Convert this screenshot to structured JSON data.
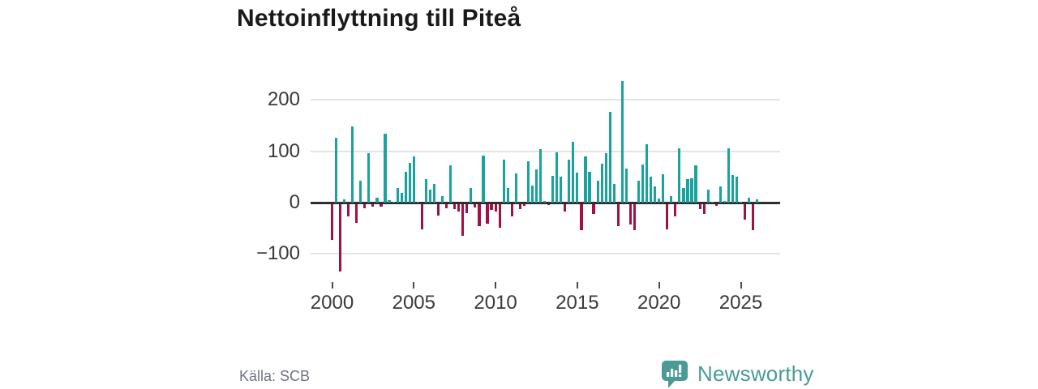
{
  "title": "Nettoinflyttning till Piteå",
  "source": "Källa: SCB",
  "branding": {
    "logo_text": "Newsworthy",
    "logo_color": "#4a9b95"
  },
  "chart_data": {
    "type": "bar",
    "title": "Nettoinflyttning till Piteå",
    "x_unit": "quarter",
    "x_start": "2000 Q1",
    "x_end": "2026 Q1",
    "x_tick_years": [
      2000,
      2005,
      2010,
      2015,
      2020,
      2025
    ],
    "y_ticks": [
      200,
      100,
      0,
      -100
    ],
    "y_tick_labels": [
      "200",
      "100",
      "0",
      "−100"
    ],
    "ylim": [
      -140,
      245
    ],
    "grid": true,
    "legend": "none",
    "positive_color": "#1aa29e",
    "negative_color": "#a41046",
    "series": [
      {
        "name": "Nettoinflyttning",
        "values": [
          -70,
          126,
          -132,
          7,
          -24,
          148,
          -37,
          43,
          -9,
          96,
          -5,
          9,
          -6,
          134,
          5,
          2,
          29,
          19,
          60,
          77,
          90,
          2,
          -50,
          45,
          25,
          37,
          -23,
          13,
          -8,
          73,
          -10,
          -15,
          -63,
          -18,
          28,
          -7,
          -44,
          91,
          -39,
          -12,
          -15,
          -47,
          84,
          29,
          -24,
          57,
          -10,
          -4,
          81,
          33,
          65,
          104,
          3,
          -3,
          52,
          98,
          51,
          -15,
          83,
          118,
          58,
          -51,
          90,
          60,
          -20,
          43,
          75,
          97,
          177,
          36,
          -43,
          236,
          66,
          -40,
          -51,
          43,
          74,
          113,
          51,
          32,
          8,
          55,
          -50,
          12,
          -25,
          106,
          29,
          46,
          47,
          73,
          -11,
          -19,
          25,
          2,
          -4,
          32,
          3,
          105,
          54,
          51,
          2,
          -30,
          10,
          -52,
          7
        ]
      }
    ]
  }
}
